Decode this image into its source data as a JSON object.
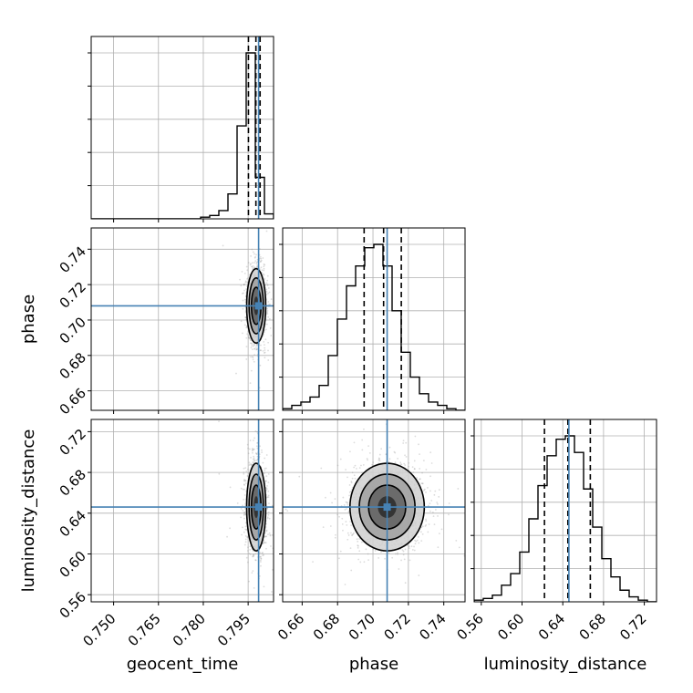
{
  "chart_data": {
    "type": "corner",
    "parameters": [
      "geocent_time",
      "phase",
      "luminosity_distance"
    ],
    "axis_labels": [
      "geocent_time",
      "phase",
      "luminosity_distance"
    ],
    "truths": [
      0.7985,
      0.708,
      0.646
    ],
    "ranges": [
      [
        0.7425,
        0.8035
      ],
      [
        0.649,
        0.752
      ],
      [
        0.553,
        0.732
      ]
    ],
    "ticks": {
      "geocent_time": [
        "0.750",
        "0.765",
        "0.780",
        "0.795"
      ],
      "phase": [
        "0.66",
        "0.68",
        "0.70",
        "0.72",
        "0.74"
      ],
      "luminosity_distance": [
        "0.56",
        "0.60",
        "0.64",
        "0.68",
        "0.72"
      ]
    },
    "tick_values": {
      "geocent_time": [
        0.75,
        0.765,
        0.78,
        0.795
      ],
      "phase": [
        0.66,
        0.68,
        0.7,
        0.72,
        0.74
      ],
      "luminosity_distance": [
        0.56,
        0.6,
        0.64,
        0.68,
        0.72
      ]
    },
    "marginals": [
      {
        "param": "geocent_time",
        "bin_edges": [
          0.7425,
          0.74555,
          0.7486,
          0.75165,
          0.7547,
          0.75775,
          0.7608,
          0.76385,
          0.7669,
          0.76995,
          0.773,
          0.77605,
          0.7791,
          0.78215,
          0.7852,
          0.78825,
          0.7913,
          0.79435,
          0.7974,
          0.80045,
          0.8035
        ],
        "counts": [
          0,
          0,
          0,
          0,
          0,
          0,
          0,
          0,
          0,
          0,
          0,
          0,
          0.01,
          0.02,
          0.05,
          0.15,
          0.56,
          1.0,
          0.25,
          0.03
        ],
        "quantiles": [
          0.7951,
          0.7976,
          0.799
        ]
      },
      {
        "param": "phase",
        "bin_edges": [
          0.649,
          0.65415,
          0.6593,
          0.66445,
          0.6696,
          0.67475,
          0.6799,
          0.68505,
          0.6902,
          0.69535,
          0.7005,
          0.70565,
          0.7108,
          0.71595,
          0.7211,
          0.72625,
          0.7314,
          0.73655,
          0.7417,
          0.74685,
          0.752
        ],
        "counts": [
          0.01,
          0.03,
          0.05,
          0.08,
          0.15,
          0.33,
          0.55,
          0.75,
          0.87,
          0.98,
          1.0,
          0.87,
          0.6,
          0.35,
          0.2,
          0.1,
          0.05,
          0.03,
          0.01,
          0.0
        ],
        "quantiles": [
          0.695,
          0.706,
          0.716
        ]
      },
      {
        "param": "luminosity_distance",
        "bin_edges": [
          0.553,
          0.56195,
          0.5709,
          0.57985,
          0.5888,
          0.59775,
          0.6067,
          0.61565,
          0.6246,
          0.63355,
          0.6425,
          0.65145,
          0.6604,
          0.66935,
          0.6783,
          0.68725,
          0.6962,
          0.70515,
          0.7141,
          0.72305,
          0.732
        ],
        "counts": [
          0.01,
          0.02,
          0.04,
          0.1,
          0.17,
          0.3,
          0.5,
          0.7,
          0.88,
          0.98,
          1.0,
          0.9,
          0.68,
          0.45,
          0.26,
          0.15,
          0.07,
          0.03,
          0.01,
          0.0
        ],
        "quantiles": [
          0.622,
          0.645,
          0.667
        ]
      }
    ],
    "joint_sigma": {
      "geocent_time": 0.0016,
      "phase": 0.0105,
      "luminosity_distance": 0.0215
    },
    "grid": true,
    "colors": {
      "truth": "#4682b4",
      "hist": "#000000",
      "quantile": "#000000",
      "samples": "#9a9a9a",
      "density_dark": "#1a1a1a",
      "grid": "#b0b0b0"
    }
  }
}
